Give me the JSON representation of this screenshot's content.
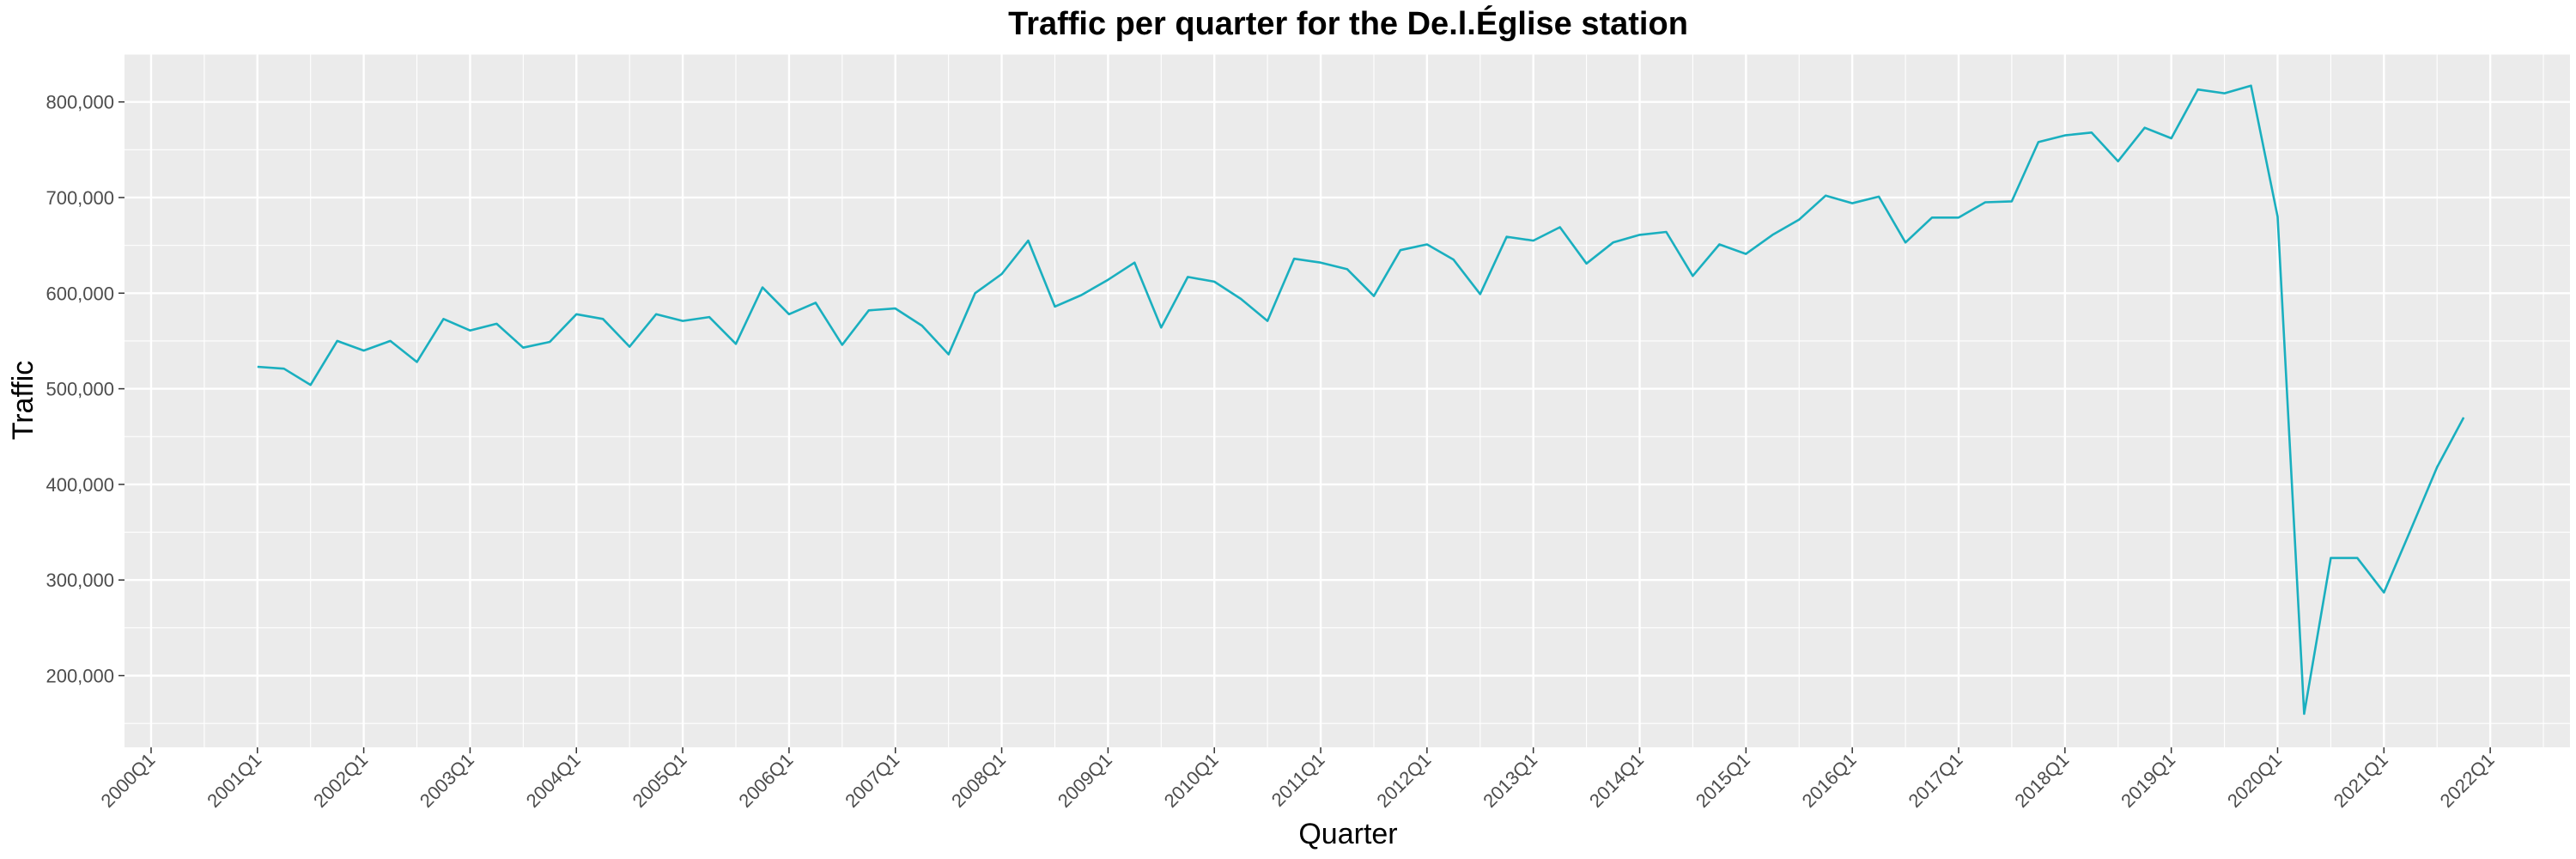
{
  "chart_data": {
    "type": "line",
    "title": "Traffic per quarter for the De.l.Église station",
    "xlabel": "Quarter",
    "ylabel": "Traffic",
    "x_tick_labels": [
      "2000Q1",
      "2001Q1",
      "2002Q1",
      "2003Q1",
      "2004Q1",
      "2005Q1",
      "2006Q1",
      "2007Q1",
      "2008Q1",
      "2009Q1",
      "2010Q1",
      "2011Q1",
      "2012Q1",
      "2013Q1",
      "2014Q1",
      "2015Q1",
      "2016Q1",
      "2017Q1",
      "2018Q1",
      "2019Q1",
      "2020Q1",
      "2021Q1",
      "2022Q1"
    ],
    "y_tick_labels": [
      "200,000",
      "300,000",
      "400,000",
      "500,000",
      "600,000",
      "700,000",
      "800,000"
    ],
    "y_ticks": [
      200000,
      300000,
      400000,
      500000,
      600000,
      700000,
      800000
    ],
    "ylim": [
      125000,
      850000
    ],
    "xlim": [
      "1999Q4",
      "2022Q4"
    ],
    "grid": true,
    "line_color": "#1AAFBF",
    "panel_color": "#EBEBEB",
    "series": [
      {
        "x": [
          "2001Q1",
          "2001Q2",
          "2001Q3",
          "2001Q4",
          "2002Q1",
          "2002Q2",
          "2002Q3",
          "2002Q4",
          "2003Q1",
          "2003Q2",
          "2003Q3",
          "2003Q4",
          "2004Q1",
          "2004Q2",
          "2004Q3",
          "2004Q4",
          "2005Q1",
          "2005Q2",
          "2005Q3",
          "2005Q4",
          "2006Q1",
          "2006Q2",
          "2006Q3",
          "2006Q4",
          "2007Q1",
          "2007Q2",
          "2007Q3",
          "2007Q4",
          "2008Q1",
          "2008Q2",
          "2008Q3",
          "2008Q4",
          "2009Q1",
          "2009Q2",
          "2009Q3",
          "2009Q4",
          "2010Q1",
          "2010Q2",
          "2010Q3",
          "2010Q4",
          "2011Q1",
          "2011Q2",
          "2011Q3",
          "2011Q4",
          "2012Q1",
          "2012Q2",
          "2012Q3",
          "2012Q4",
          "2013Q1",
          "2013Q2",
          "2013Q3",
          "2013Q4",
          "2014Q1",
          "2014Q2",
          "2014Q3",
          "2014Q4",
          "2015Q1",
          "2015Q2",
          "2015Q3",
          "2015Q4",
          "2016Q1",
          "2016Q2",
          "2016Q3",
          "2016Q4",
          "2017Q1",
          "2017Q2",
          "2017Q3",
          "2017Q4",
          "2018Q1",
          "2018Q2",
          "2018Q3",
          "2018Q4",
          "2019Q1",
          "2019Q2",
          "2019Q3",
          "2019Q4",
          "2020Q1",
          "2020Q2",
          "2020Q3",
          "2020Q4",
          "2021Q1",
          "2021Q2",
          "2021Q3",
          "2021Q4"
        ],
        "values": [
          523000,
          521000,
          504000,
          550000,
          540000,
          550000,
          528000,
          573000,
          561000,
          568000,
          543000,
          549000,
          578000,
          573000,
          544000,
          578000,
          571000,
          575000,
          547000,
          606000,
          578000,
          590000,
          546000,
          582000,
          584000,
          566000,
          536000,
          600000,
          620000,
          655000,
          586000,
          598000,
          614000,
          632000,
          564000,
          617000,
          612000,
          594000,
          571000,
          636000,
          632000,
          625000,
          597000,
          645000,
          651000,
          635000,
          599000,
          659000,
          655000,
          669000,
          631000,
          653000,
          661000,
          664000,
          618000,
          651000,
          641000,
          661000,
          677000,
          702000,
          694000,
          701000,
          653000,
          679000,
          679000,
          695000,
          696000,
          758000,
          765000,
          768000,
          738000,
          773000,
          762000,
          813000,
          809000,
          817000,
          680000,
          160000,
          323000,
          323000,
          287000,
          352000,
          418000,
          470000
        ]
      }
    ]
  }
}
